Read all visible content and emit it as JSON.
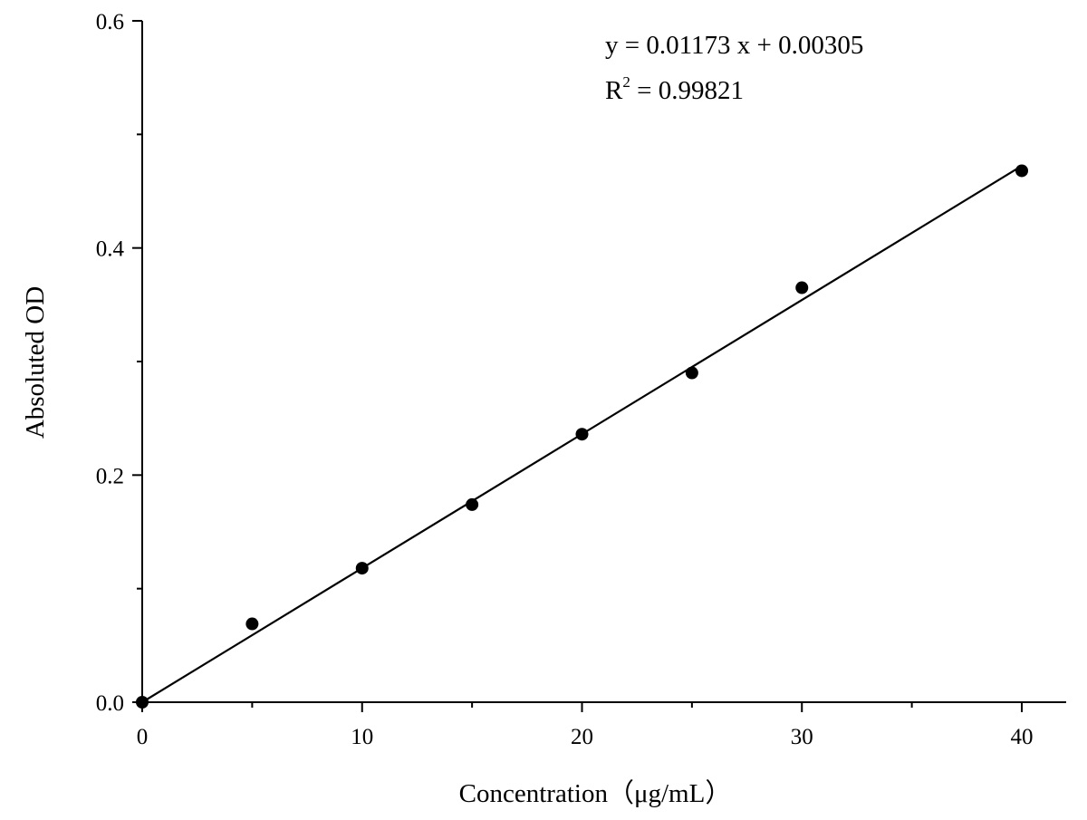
{
  "chart_data": {
    "type": "scatter",
    "xlabel": "Concentration（μg/mL）",
    "ylabel": "Absoluted OD",
    "xlim": [
      0,
      42
    ],
    "ylim": [
      0,
      0.6
    ],
    "x_ticks": [
      0,
      10,
      20,
      30,
      40
    ],
    "x_tick_labels": [
      "0",
      "10",
      "20",
      "30",
      "40"
    ],
    "x_minor_ticks": [
      5,
      15,
      25,
      35
    ],
    "y_ticks": [
      0.0,
      0.2,
      0.4,
      0.6
    ],
    "y_tick_labels": [
      "0.0",
      "0.2",
      "0.4",
      "0.6"
    ],
    "y_minor_ticks": [
      0.1,
      0.3,
      0.5
    ],
    "grid": false,
    "series": [
      {
        "marker": "filled-circle",
        "x": [
          0,
          5,
          10,
          15,
          20,
          25,
          30,
          40
        ],
        "y": [
          0.0,
          0.069,
          0.118,
          0.174,
          0.236,
          0.29,
          0.365,
          0.468
        ]
      }
    ],
    "fit_line": {
      "slope": 0.01173,
      "intercept": 0.00305,
      "x_range": [
        0,
        40
      ]
    },
    "annotations": {
      "equation": "y = 0.01173 x + 0.00305",
      "r2_base": "R",
      "r2_sup": "2",
      "r2_rest": " = 0.99821"
    },
    "colors": {
      "marks": "#000000",
      "background": "#ffffff"
    }
  }
}
